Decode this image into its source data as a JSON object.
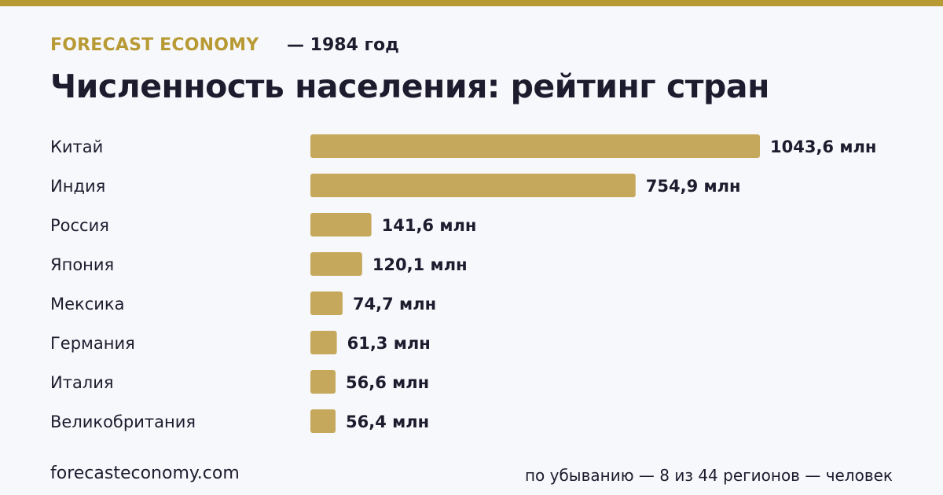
{
  "header": {
    "brand": "FORECAST ECONOMY",
    "subtitle": "— 1984 год",
    "title": "Численность населения: рейтинг стран"
  },
  "colors": {
    "accent": "#b89a35",
    "bar": "#c6a85c",
    "text": "#1c1c2e",
    "background": "#f7f8fc"
  },
  "chart_data": {
    "type": "bar",
    "orientation": "horizontal",
    "categories": [
      "Китай",
      "Индия",
      "Россия",
      "Япония",
      "Мексика",
      "Германия",
      "Италия",
      "Великобритания"
    ],
    "values": [
      1043.6,
      754.9,
      141.6,
      120.1,
      74.7,
      61.3,
      56.6,
      56.4
    ],
    "value_labels": [
      "1043,6 млн",
      "754,9 млн",
      "141,6 млн",
      "120,1 млн",
      "74,7 млн",
      "61,3 млн",
      "56,6 млн",
      "56,4 млн"
    ],
    "xlim": [
      0,
      1043.6
    ],
    "grid": false,
    "legend": "none"
  },
  "footer": {
    "source": "forecasteconomy.com",
    "note": "по убыванию — 8 из 44 регионов — человек"
  }
}
